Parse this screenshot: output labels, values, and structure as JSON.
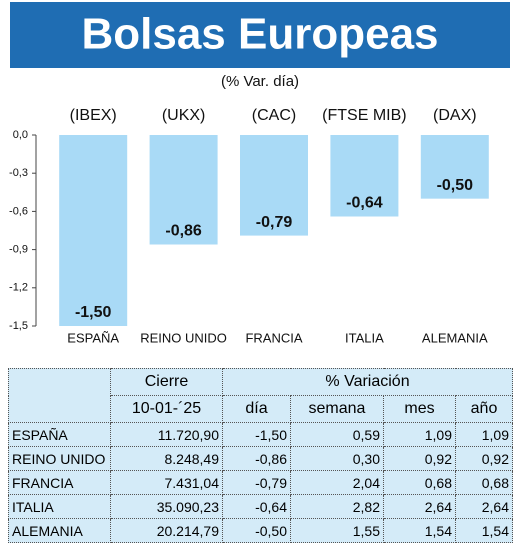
{
  "chart_data": {
    "type": "bar",
    "title": "Bolsas Europeas",
    "subtitle": "(% Var. día)",
    "tickers": [
      "(IBEX)",
      "(UKX)",
      "(CAC)",
      "(FTSE MIB)",
      "(DAX)"
    ],
    "categories": [
      "ESPAÑA",
      "REINO UNIDO",
      "FRANCIA",
      "ITALIA",
      "ALEMANIA"
    ],
    "values": [
      -1.5,
      -0.86,
      -0.79,
      -0.64,
      -0.5
    ],
    "value_labels": [
      "-1,50",
      "-0,86",
      "-0,79",
      "-0,64",
      "-0,50"
    ],
    "color": "#a9daf6",
    "ylim": [
      -1.5,
      0
    ],
    "yticks": [
      {
        "value": 0,
        "label": "0,0"
      },
      {
        "value": -0.3,
        "label": "-0,3"
      },
      {
        "value": -0.6,
        "label": "-0,6"
      },
      {
        "value": -0.9,
        "label": "-0,9"
      },
      {
        "value": -1.2,
        "label": "-1,2"
      },
      {
        "value": -1.5,
        "label": "-1,5"
      }
    ]
  },
  "table": {
    "group_headers": [
      "Cierre",
      "% Variación"
    ],
    "headers": [
      "10-01-´25",
      "día",
      "semana",
      "mes",
      "año"
    ],
    "rows": [
      [
        "ESPAÑA",
        "11.720,90",
        "-1,50",
        "0,59",
        "1,09",
        "1,09"
      ],
      [
        "REINO UNIDO",
        "8.248,49",
        "-0,86",
        "0,30",
        "0,92",
        "0,92"
      ],
      [
        "FRANCIA",
        "7.431,04",
        "-0,79",
        "2,04",
        "0,68",
        "0,68"
      ],
      [
        "ITALIA",
        "35.090,23",
        "-0,64",
        "2,82",
        "2,64",
        "2,64"
      ],
      [
        "ALEMANIA",
        "20.214,79",
        "-0,50",
        "1,55",
        "1,54",
        "1,54"
      ]
    ]
  }
}
